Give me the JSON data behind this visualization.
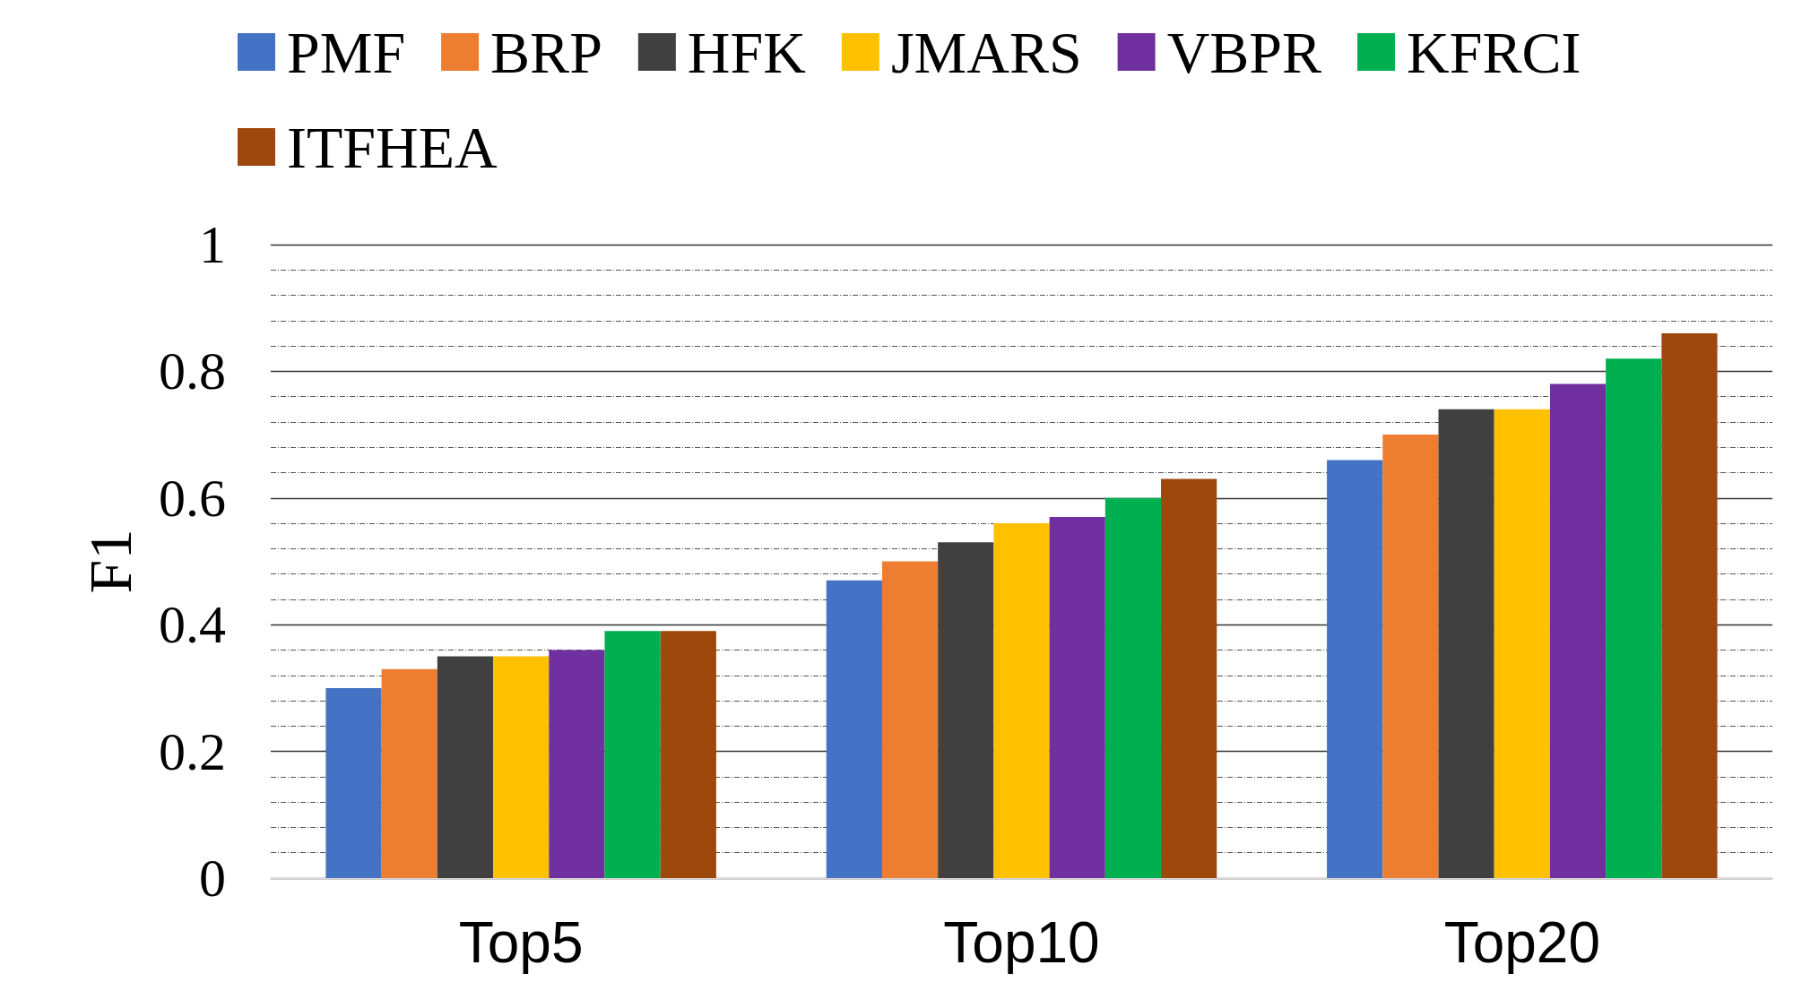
{
  "chart_data": {
    "type": "bar",
    "ylabel": "F1",
    "categories": [
      "Top5",
      "Top10",
      "Top20"
    ],
    "series": [
      {
        "name": "PMF",
        "color": "#4472c4",
        "values": [
          0.3,
          0.47,
          0.66
        ]
      },
      {
        "name": "BRP",
        "color": "#ed7d31",
        "values": [
          0.33,
          0.5,
          0.7
        ]
      },
      {
        "name": "HFK",
        "color": "#404040",
        "values": [
          0.35,
          0.53,
          0.74
        ]
      },
      {
        "name": "JMARS",
        "color": "#ffc000",
        "values": [
          0.35,
          0.56,
          0.74
        ]
      },
      {
        "name": "VBPR",
        "color": "#7030a0",
        "values": [
          0.36,
          0.57,
          0.78
        ]
      },
      {
        "name": "KFRCI",
        "color": "#00b050",
        "values": [
          0.39,
          0.6,
          0.82
        ]
      },
      {
        "name": "ITFHEA",
        "color": "#9e480e",
        "values": [
          0.39,
          0.63,
          0.86
        ]
      }
    ],
    "ylim": [
      0,
      1
    ],
    "yticks": [
      0,
      0.2,
      0.4,
      0.6,
      0.8,
      1
    ],
    "grid": "y",
    "legend": "top left"
  }
}
